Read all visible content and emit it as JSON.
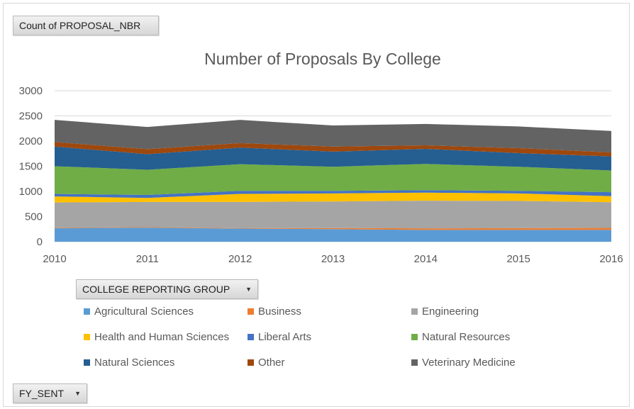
{
  "pivot": {
    "value_field": "Count of PROPOSAL_NBR",
    "legend_field": "COLLEGE REPORTING GROUP",
    "axis_field": "FY_SENT",
    "dropdown_icon": "triangle-down-icon"
  },
  "chart_data": {
    "type": "area",
    "stacked": true,
    "title": "Number of Proposals By College",
    "xlabel": "",
    "ylabel": "",
    "x": [
      "2010",
      "2011",
      "2012",
      "2013",
      "2014",
      "2015",
      "2016"
    ],
    "ylim": [
      0,
      3000
    ],
    "yticks": [
      "0",
      "500",
      "1000",
      "1500",
      "2000",
      "2500",
      "3000"
    ],
    "grid": true,
    "legend_position": "bottom",
    "series": [
      {
        "name": "Agricultural Sciences",
        "color": "#5b9bd5",
        "values": [
          270,
          280,
          260,
          250,
          235,
          235,
          235
        ]
      },
      {
        "name": "Business",
        "color": "#ed7d31",
        "values": [
          10,
          10,
          10,
          20,
          30,
          35,
          40
        ]
      },
      {
        "name": "Engineering",
        "color": "#a5a5a5",
        "values": [
          500,
          500,
          520,
          530,
          550,
          540,
          510
        ]
      },
      {
        "name": "Health and Human Sciences",
        "color": "#ffc000",
        "values": [
          120,
          80,
          160,
          160,
          160,
          150,
          120
        ]
      },
      {
        "name": "Liberal Arts",
        "color": "#4472c4",
        "values": [
          50,
          60,
          60,
          50,
          50,
          50,
          80
        ]
      },
      {
        "name": "Natural Resources",
        "color": "#70ad47",
        "values": [
          550,
          500,
          530,
          480,
          520,
          480,
          430
        ]
      },
      {
        "name": "Natural Sciences",
        "color": "#255e91",
        "values": [
          390,
          310,
          330,
          300,
          300,
          270,
          280
        ]
      },
      {
        "name": "Other",
        "color": "#9e480e",
        "values": [
          90,
          100,
          90,
          100,
          70,
          100,
          80
        ]
      },
      {
        "name": "Veterinary Medicine",
        "color": "#636363",
        "values": [
          440,
          440,
          460,
          420,
          425,
          430,
          425
        ]
      }
    ]
  }
}
